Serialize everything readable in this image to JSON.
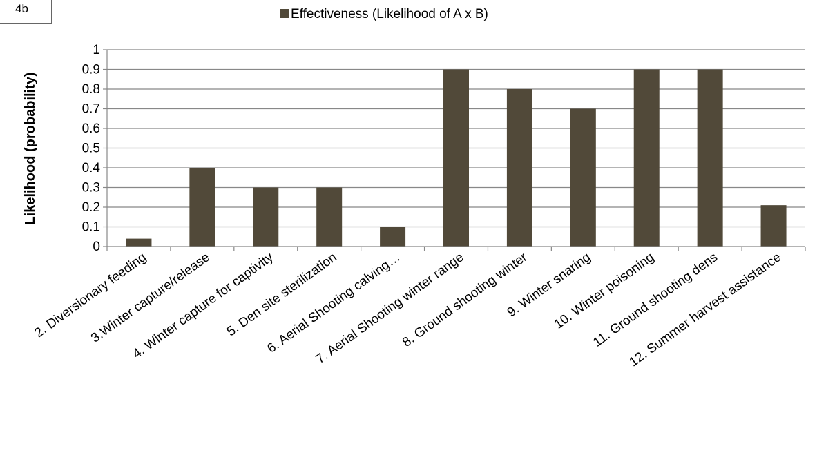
{
  "figure": {
    "badge": "4b"
  },
  "chart_data": {
    "type": "bar",
    "categories": [
      "2. Diversionary  feeding",
      "3.Winter capture/release",
      "4. Winter capture for captivity",
      "5. Den site sterilization",
      "6. Aerial Shooting  calving…",
      "7. Aerial Shooting  winter range",
      "8. Ground shooting winter",
      "9. Winter snaring",
      "10. Winter poisoning",
      "11. Ground shooting  dens",
      "12. Summer harvest assistance"
    ],
    "series": [
      {
        "name": "Effectiveness (Likelihood of A x B)",
        "values": [
          0.04,
          0.4,
          0.3,
          0.3,
          0.1,
          0.9,
          0.8,
          0.7,
          0.9,
          0.9,
          0.21
        ]
      }
    ],
    "title": "",
    "xlabel": "",
    "ylabel": "Likelihood (probability)",
    "ylim": [
      0,
      1
    ],
    "yticks": [
      "0",
      "0.1",
      "0.2",
      "0.3",
      "0.4",
      "0.5",
      "0.6",
      "0.7",
      "0.8",
      "0.9",
      "1"
    ],
    "grid": true,
    "legend_position": "top",
    "bar_color": "#514939",
    "grid_color": "#888888"
  }
}
